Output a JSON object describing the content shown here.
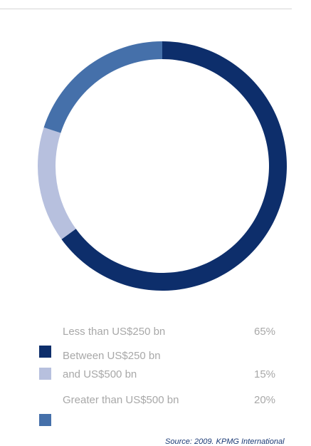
{
  "chart_data": {
    "type": "pie",
    "categories": [
      "Less than US$250 bn",
      "Between US$250 bn and US$500 bn",
      "Greater than US$500 bn"
    ],
    "values": [
      65,
      15,
      20
    ],
    "value_labels": [
      "65%",
      "15%",
      "20%"
    ],
    "colors": [
      "#0d2e6b",
      "#b7c0de",
      "#4570aa"
    ],
    "donut": true,
    "legend_position": "bottom"
  },
  "legend": {
    "items": [
      {
        "label_line1": "Less than US$250 bn",
        "label_line2": "",
        "pct": "65%"
      },
      {
        "label_line1": "Between US$250 bn",
        "label_line2": "and US$500 bn",
        "pct": "15%"
      },
      {
        "label_line1": "Greater than US$500 bn",
        "label_line2": "",
        "pct": "20%"
      }
    ]
  },
  "source": "Source: 2009. KPMG International"
}
